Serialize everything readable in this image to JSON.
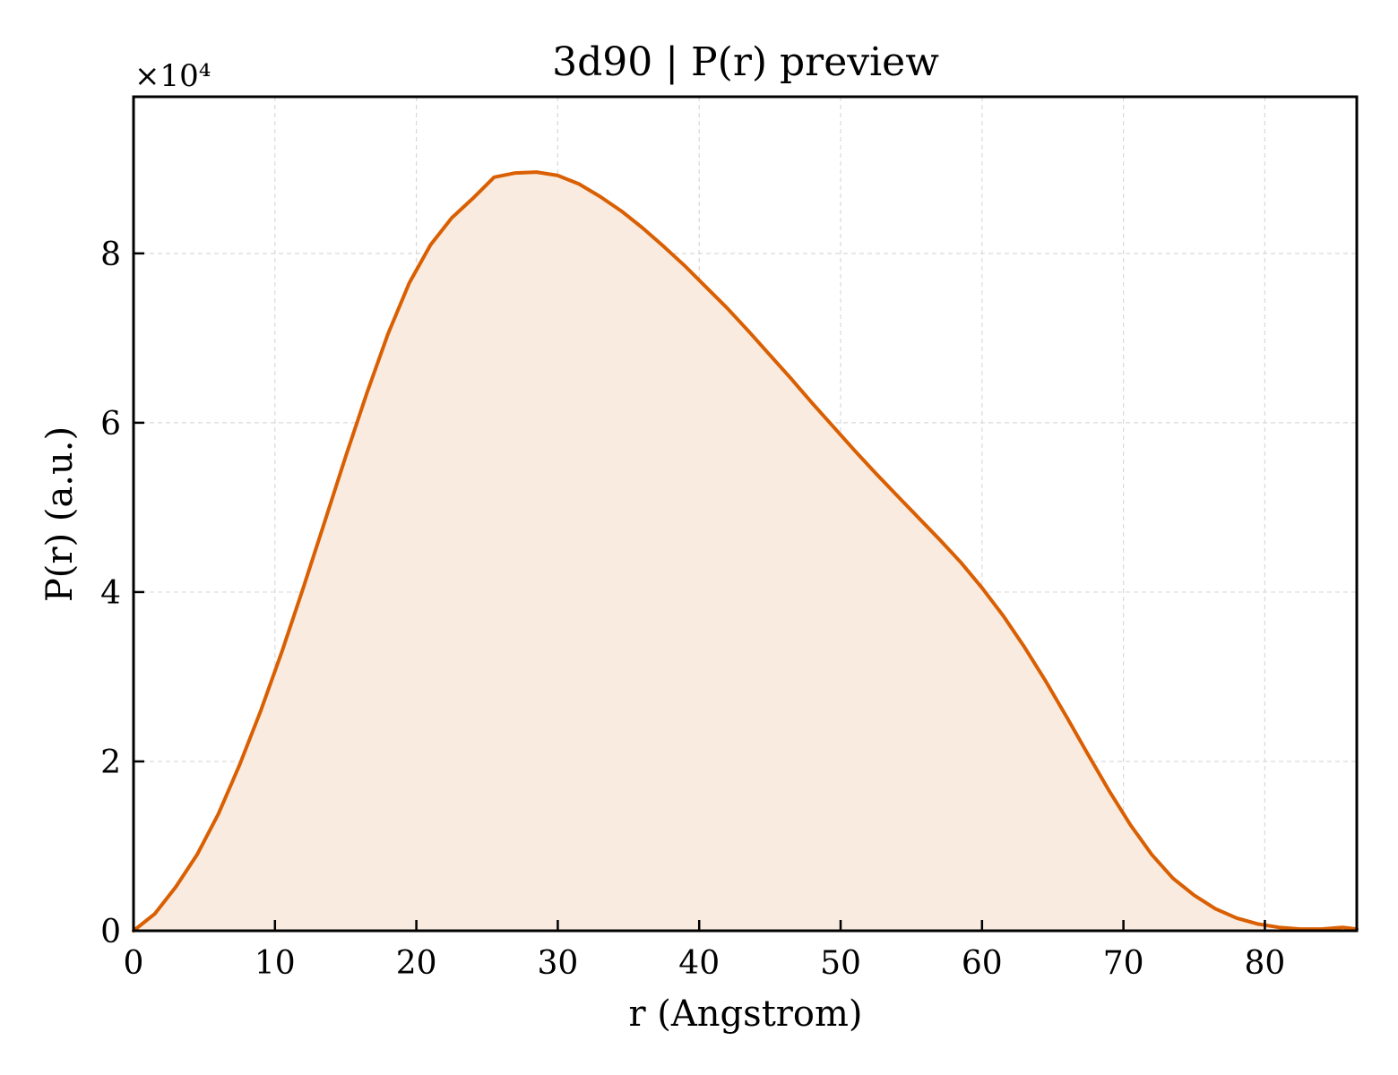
{
  "chart_data": {
    "type": "area",
    "title": "3d90 | P(r) preview",
    "xlabel": "r (Angstrom)",
    "ylabel": "P(r) (a.u.)",
    "y_multiplier_label": "×10⁴",
    "xlim": [
      0,
      86.5
    ],
    "ylim": [
      0,
      9.85
    ],
    "xticks": [
      0,
      10,
      20,
      30,
      40,
      50,
      60,
      70,
      80
    ],
    "yticks": [
      0,
      2,
      4,
      6,
      8
    ],
    "grid": true,
    "colors": {
      "line": "#d95f02",
      "fill": "#f9ebe0",
      "grid": "#d9d9d9"
    },
    "series": [
      {
        "x": [
          0,
          1.5,
          3,
          4.5,
          6,
          7.5,
          9,
          10.5,
          12,
          13.5,
          15,
          16.5,
          18,
          19.5,
          21,
          22.5,
          24,
          25.5,
          27,
          28.5,
          30,
          31.5,
          33,
          34.5,
          36,
          37.5,
          39,
          40.5,
          42,
          43.5,
          45,
          46.5,
          48,
          49.5,
          51,
          52.5,
          54,
          55.5,
          57,
          58.5,
          60,
          61.5,
          63,
          64.5,
          66,
          67.5,
          69,
          70.5,
          72,
          73.5,
          75,
          76.5,
          78,
          79.5,
          81,
          82.5,
          84,
          85.5,
          86.5
        ],
        "y": [
          0,
          0.2,
          0.52,
          0.9,
          1.38,
          1.96,
          2.6,
          3.3,
          4.05,
          4.82,
          5.6,
          6.35,
          7.05,
          7.65,
          8.1,
          8.42,
          8.65,
          8.9,
          8.95,
          8.96,
          8.92,
          8.82,
          8.67,
          8.5,
          8.3,
          8.08,
          7.85,
          7.6,
          7.35,
          7.08,
          6.8,
          6.52,
          6.23,
          5.95,
          5.67,
          5.4,
          5.14,
          4.88,
          4.62,
          4.35,
          4.05,
          3.72,
          3.35,
          2.95,
          2.52,
          2.08,
          1.65,
          1.25,
          0.9,
          0.62,
          0.42,
          0.26,
          0.15,
          0.08,
          0.04,
          0.02,
          0.02,
          0.04,
          0.02
        ]
      }
    ]
  }
}
